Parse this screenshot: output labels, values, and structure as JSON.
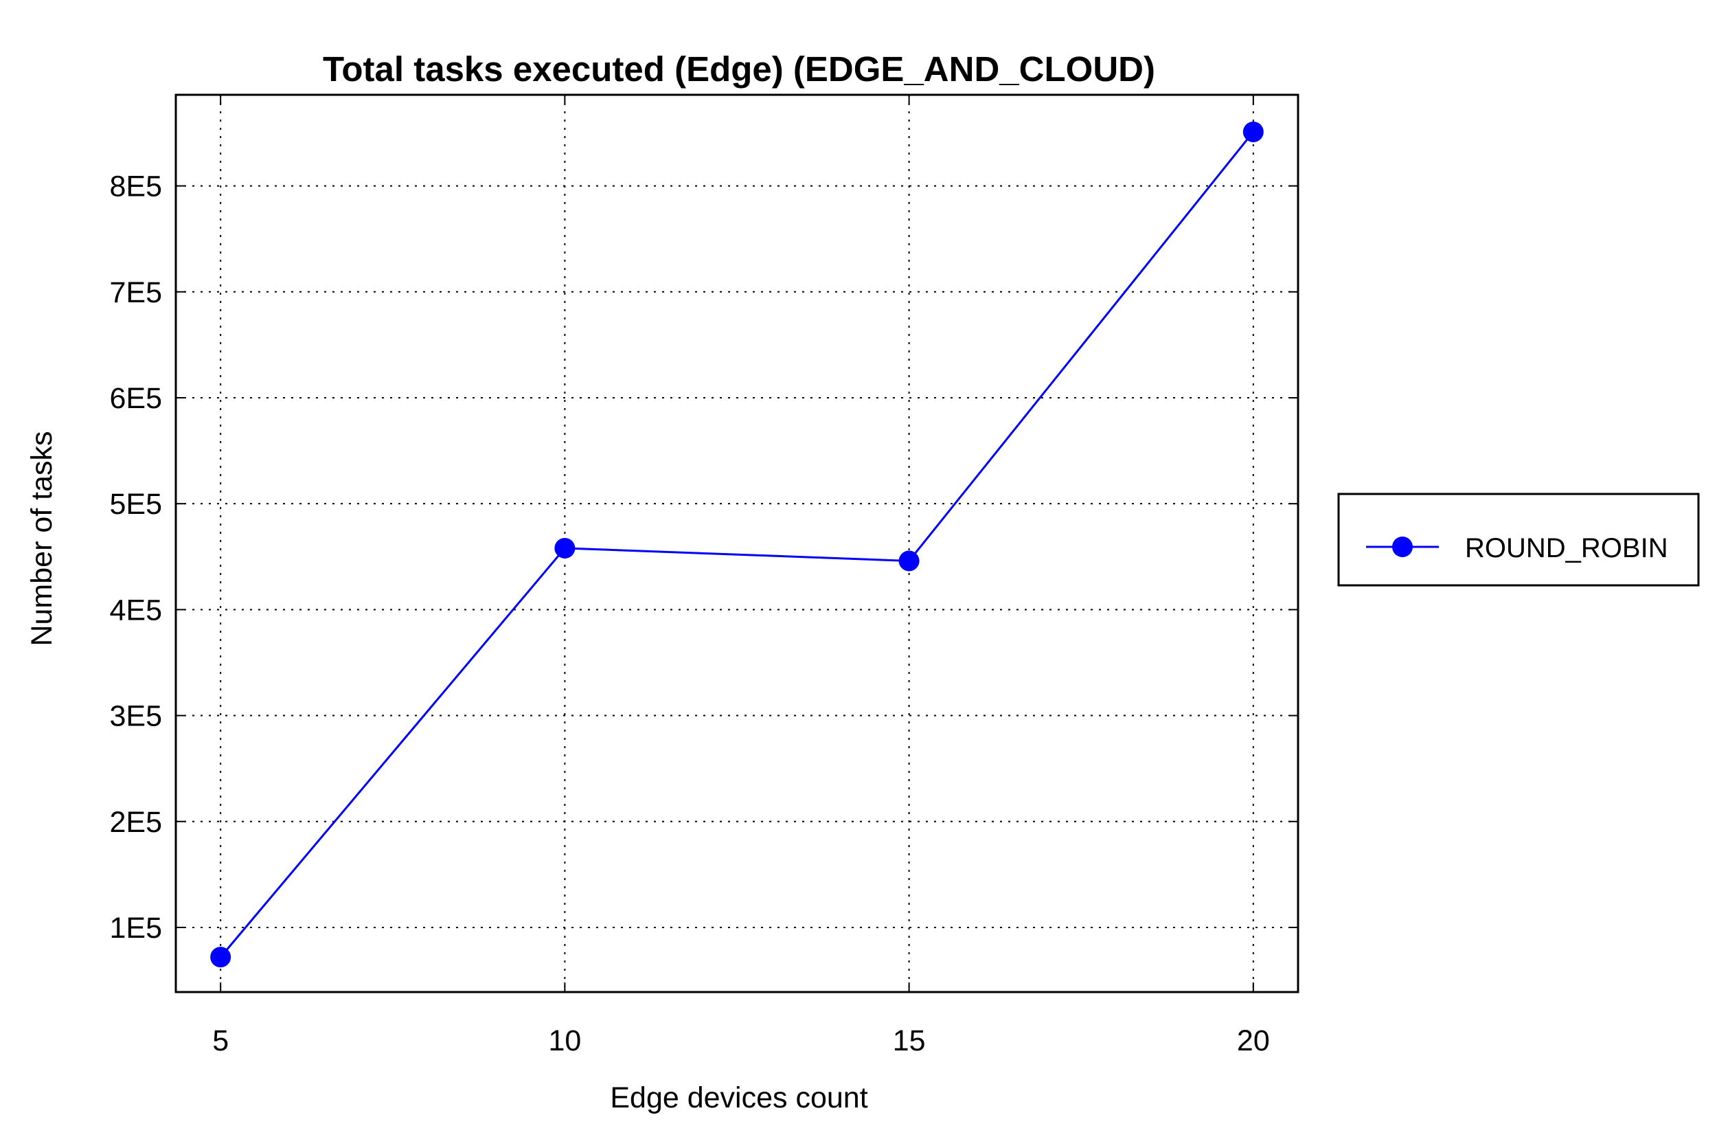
{
  "chart_data": {
    "type": "line",
    "title": "Total tasks executed (Edge) (EDGE_AND_CLOUD)",
    "xlabel": "Edge devices count",
    "ylabel": "Number of tasks",
    "x": [
      5,
      10,
      15,
      20
    ],
    "x_tick_labels": [
      "5",
      "10",
      "15",
      "20"
    ],
    "xlim": [
      4.35,
      20.65
    ],
    "y_ticks": [
      100000,
      200000,
      300000,
      400000,
      500000,
      600000,
      700000,
      800000
    ],
    "y_tick_labels": [
      "1E5",
      "2E5",
      "3E5",
      "4E5",
      "5E5",
      "6E5",
      "7E5",
      "8E5"
    ],
    "ylim": [
      39000,
      886000
    ],
    "grid": true,
    "legend_position": "right",
    "series": [
      {
        "name": "ROUND_ROBIN",
        "color": "#0000ff",
        "marker": "circle",
        "values": [
          72000,
          458000,
          446000,
          851000
        ]
      }
    ]
  }
}
